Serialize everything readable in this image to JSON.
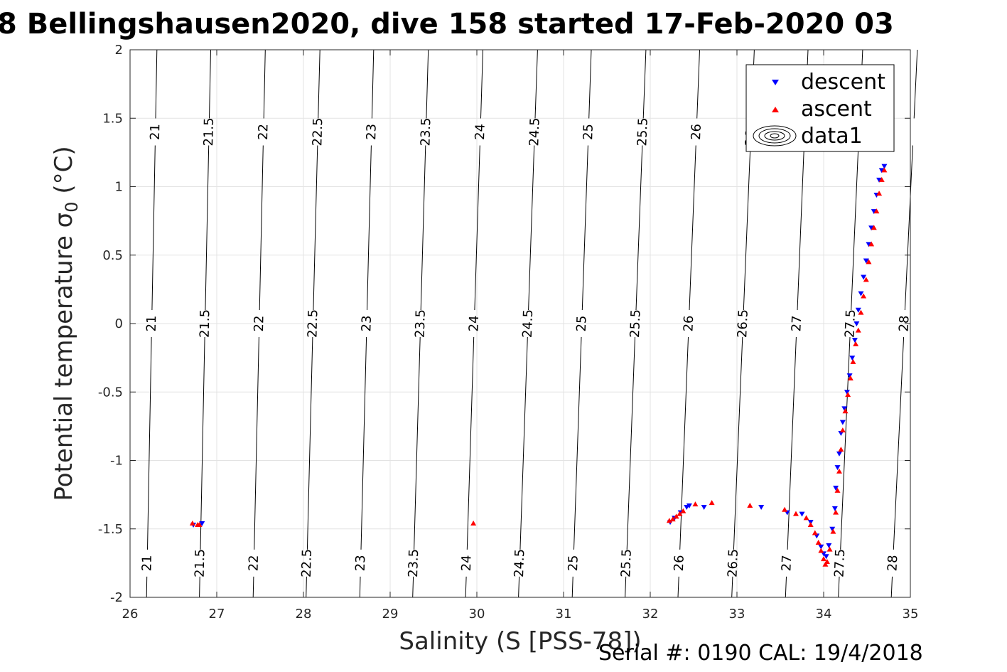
{
  "title": "8 Bellingshausen2020, dive 158 started 17-Feb-2020 03",
  "footer": "Serial #: 0190  CAL: 19/4/2018",
  "chart_data": {
    "type": "scatter",
    "xlabel": "Salinity (S [PSS-78])",
    "ylabel_main": "Potential temperature σ",
    "ylabel_sub": "0",
    "ylabel_unit": " (°C)",
    "xlim": [
      26,
      35
    ],
    "ylim": [
      -2,
      2
    ],
    "xticks": [
      26,
      27,
      28,
      29,
      30,
      31,
      32,
      33,
      34,
      35
    ],
    "yticks": [
      -2,
      -1.5,
      -1,
      -0.5,
      0,
      0.5,
      1,
      1.5,
      2
    ],
    "ytick_labels": [
      "-2",
      "-1.5",
      "-1",
      "-0.5",
      "0",
      "0.5",
      "1",
      "1.5",
      "2"
    ],
    "grid": true,
    "legend_position": "top-right",
    "legend": [
      {
        "name": "descent",
        "marker": "triangle-down",
        "color": "#0000ff"
      },
      {
        "name": "ascent",
        "marker": "triangle-up",
        "color": "#ff0000"
      },
      {
        "name": "data1",
        "marker": "contour",
        "color": "#000000"
      }
    ],
    "contours": {
      "levels": [
        21,
        21.5,
        22,
        22.5,
        23,
        23.5,
        24,
        24.5,
        25,
        25.5,
        26,
        26.5,
        27,
        27.5,
        28
      ],
      "salinity_at_bottom": [
        26.19,
        26.8,
        27.42,
        28.03,
        28.65,
        29.26,
        29.87,
        30.48,
        31.1,
        31.71,
        32.32,
        32.94,
        33.56,
        34.17,
        34.78
      ],
      "salinity_at_top": [
        26.31,
        26.93,
        27.56,
        28.19,
        28.81,
        29.44,
        30.07,
        30.7,
        31.32,
        31.95,
        32.57,
        33.2,
        33.82,
        34.45,
        35.08
      ],
      "label_temperatures": [
        -1.75,
        0,
        1.4
      ]
    },
    "series": [
      {
        "name": "descent",
        "color": "#0000ff",
        "points": [
          [
            26.83,
            -1.46
          ],
          [
            26.73,
            -1.47
          ],
          [
            32.23,
            -1.45
          ],
          [
            32.28,
            -1.42
          ],
          [
            32.35,
            -1.38
          ],
          [
            32.42,
            -1.34
          ],
          [
            32.45,
            -1.33
          ],
          [
            32.62,
            -1.34
          ],
          [
            33.28,
            -1.34
          ],
          [
            33.58,
            -1.38
          ],
          [
            33.75,
            -1.39
          ],
          [
            33.85,
            -1.45
          ],
          [
            33.92,
            -1.55
          ],
          [
            33.97,
            -1.63
          ],
          [
            34.0,
            -1.68
          ],
          [
            34.03,
            -1.7
          ],
          [
            34.06,
            -1.62
          ],
          [
            34.1,
            -1.5
          ],
          [
            34.13,
            -1.35
          ],
          [
            34.14,
            -1.2
          ],
          [
            34.16,
            -1.05
          ],
          [
            34.18,
            -0.95
          ],
          [
            34.2,
            -0.8
          ],
          [
            34.22,
            -0.72
          ],
          [
            34.24,
            -0.62
          ],
          [
            34.27,
            -0.5
          ],
          [
            34.3,
            -0.38
          ],
          [
            34.33,
            -0.25
          ],
          [
            34.36,
            -0.12
          ],
          [
            34.38,
            0.0
          ],
          [
            34.4,
            0.1
          ],
          [
            34.43,
            0.22
          ],
          [
            34.46,
            0.34
          ],
          [
            34.49,
            0.46
          ],
          [
            34.52,
            0.58
          ],
          [
            34.55,
            0.7
          ],
          [
            34.58,
            0.82
          ],
          [
            34.61,
            0.94
          ],
          [
            34.64,
            1.05
          ],
          [
            34.67,
            1.12
          ],
          [
            34.7,
            1.15
          ]
        ]
      },
      {
        "name": "ascent",
        "color": "#ff0000",
        "points": [
          [
            26.72,
            -1.46
          ],
          [
            26.8,
            -1.47
          ],
          [
            26.78,
            -1.47
          ],
          [
            29.96,
            -1.46
          ],
          [
            32.22,
            -1.44
          ],
          [
            32.26,
            -1.43
          ],
          [
            32.3,
            -1.41
          ],
          [
            32.34,
            -1.39
          ],
          [
            32.38,
            -1.37
          ],
          [
            32.52,
            -1.32
          ],
          [
            32.71,
            -1.31
          ],
          [
            33.15,
            -1.33
          ],
          [
            33.55,
            -1.36
          ],
          [
            33.68,
            -1.39
          ],
          [
            33.8,
            -1.42
          ],
          [
            33.85,
            -1.47
          ],
          [
            33.9,
            -1.53
          ],
          [
            33.94,
            -1.6
          ],
          [
            33.97,
            -1.66
          ],
          [
            34.0,
            -1.72
          ],
          [
            34.02,
            -1.76
          ],
          [
            34.04,
            -1.74
          ],
          [
            34.07,
            -1.65
          ],
          [
            34.11,
            -1.52
          ],
          [
            34.14,
            -1.38
          ],
          [
            34.16,
            -1.22
          ],
          [
            34.18,
            -1.08
          ],
          [
            34.2,
            -0.92
          ],
          [
            34.22,
            -0.78
          ],
          [
            34.25,
            -0.64
          ],
          [
            34.28,
            -0.52
          ],
          [
            34.31,
            -0.4
          ],
          [
            34.34,
            -0.28
          ],
          [
            34.37,
            -0.15
          ],
          [
            34.4,
            -0.05
          ],
          [
            34.43,
            0.08
          ],
          [
            34.46,
            0.2
          ],
          [
            34.49,
            0.32
          ],
          [
            34.52,
            0.45
          ],
          [
            34.55,
            0.58
          ],
          [
            34.58,
            0.7
          ],
          [
            34.61,
            0.82
          ],
          [
            34.64,
            0.95
          ],
          [
            34.67,
            1.05
          ],
          [
            34.7,
            1.12
          ]
        ]
      }
    ]
  }
}
